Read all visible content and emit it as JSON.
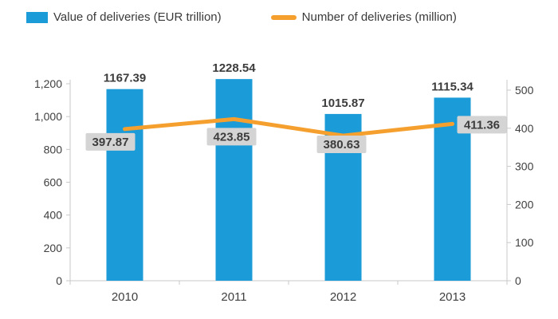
{
  "chart_data": {
    "type": "combo-bar-line",
    "categories": [
      "2010",
      "2011",
      "2012",
      "2013"
    ],
    "series": [
      {
        "name": "Value of deliveries (EUR trillion)",
        "type": "bar",
        "axis": "left",
        "color": "#1b9bd8",
        "values": [
          1167.39,
          1228.54,
          1015.87,
          1115.34
        ],
        "labels": [
          "1167.39",
          "1228.54",
          "1015.87",
          "1115.34"
        ]
      },
      {
        "name": "Number of deliveries (million)",
        "type": "line",
        "axis": "right",
        "color": "#f5a02e",
        "values": [
          397.87,
          423.85,
          380.63,
          411.36
        ],
        "labels": [
          "397.87",
          "423.85",
          "380.63",
          "411.36"
        ],
        "label_bg": "#d4d4d4"
      }
    ],
    "left_axis": {
      "min": 0,
      "max": 1200,
      "tick_values": [
        0,
        200,
        400,
        600,
        800,
        1000,
        1200
      ],
      "tick_labels": [
        "0",
        "200",
        "400",
        "600",
        "800",
        "1,000",
        "1,200"
      ]
    },
    "right_axis": {
      "min": 0,
      "max": 500,
      "tick_values": [
        0,
        100,
        200,
        300,
        400,
        500
      ],
      "tick_labels": [
        "0",
        "100",
        "200",
        "300",
        "400",
        "500"
      ]
    },
    "grid": false,
    "legend_position": "top",
    "text_color": "#3f3f3f",
    "axis_color": "#c9c9c9"
  }
}
